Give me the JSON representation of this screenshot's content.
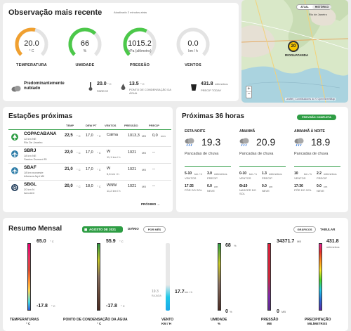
{
  "current": {
    "title": "Observação mais recente",
    "updated": "Atualizado 2 minutos atrás",
    "toggle": {
      "atual": "ATUAL",
      "historico": "HISTÓRICO"
    },
    "gauges": [
      {
        "value": "20.0",
        "unit": "° C",
        "label": "TEMPERATURA",
        "color": "#f0a030",
        "fraction": 0.55
      },
      {
        "value": "66",
        "unit": "%",
        "label": "UMIDADE",
        "color": "#4cc84a",
        "fraction": 0.66
      },
      {
        "value": "1015.2",
        "unit": "hPa (altímetro)",
        "label": "PRESSÃO",
        "color": "#4cc84a",
        "fraction": 0.6
      },
      {
        "value": "0.0",
        "unit": "km / h",
        "label": "VENTOS",
        "color": "#cccccc",
        "fraction": 0.0
      }
    ],
    "condition": "Predominantemente nublado",
    "feels_value": "20.0",
    "feels_unit": "° C",
    "feels_label": "PARECE",
    "dew_value": "13.5",
    "dew_unit": "° C",
    "dew_label": "PONTO DE CONDENSAÇÃO DA ÁGUA",
    "precip_value": "431.8",
    "precip_unit": "milímetros",
    "precip_label": "PRECIP TODAY"
  },
  "map": {
    "city_label": "Rio de Janeiro",
    "station_value": "20",
    "station_label": "RIOGUATANDA",
    "zoom_in": "+",
    "zoom_out": "−",
    "attribution": "Leaflet | Contribuidores do © OpenStreetMap"
  },
  "stations": {
    "title": "Estações próximas",
    "headers": [
      "TEMP",
      "DEW PT",
      "VENTOS",
      "PRESSÃO",
      "PRECIP"
    ],
    "rows": [
      {
        "name": "COPACABANA",
        "dist": "12 km NE",
        "place": "Rio De Janeiro",
        "temp": "22,5",
        "tempu": "° C",
        "dew": "17,0",
        "dewu": "° C",
        "wind": "Calma",
        "windsub": "",
        "press": "1013,3",
        "pressu": "MB",
        "precip": "0,0",
        "precipu": "mm",
        "icon": "tree"
      },
      {
        "name": "SBRJ",
        "dist": "18 km NE",
        "place": "Santos Dumont Rl",
        "temp": "22,0",
        "tempu": "° C",
        "dew": "17,0",
        "dewu": "° C",
        "wind": "W",
        "windsub": "11,1 km / h",
        "press": "1021",
        "pressu": "MB",
        "precip": "--",
        "precipu": "",
        "icon": "plane"
      },
      {
        "name": "SBAF",
        "dist": "18 km noroeste",
        "place": "Afonsos Arpt Mil",
        "temp": "21,0",
        "tempu": "° C",
        "dew": "17,0",
        "dewu": "° C",
        "wind": "W",
        "windsub": "5,6 km / h",
        "press": "1021",
        "pressu": "MB",
        "precip": "--",
        "precipu": "",
        "icon": "plane"
      },
      {
        "name": "SBGL",
        "dist": "20 km N",
        "place": "Isecoteri",
        "temp": "20,0",
        "tempu": "° C",
        "dew": "18,0",
        "dewu": "° C",
        "wind": "WNW",
        "windsub": "11,2 km / h",
        "press": "1021",
        "pressu": "MB",
        "precip": "--",
        "precipu": "",
        "icon": "gear"
      }
    ],
    "next": "PRÓXIMO"
  },
  "forecast": {
    "title": "Próximas 36 horas",
    "button": "PREVISÃO COMPLETA",
    "periods": [
      {
        "label": "ESTA NOITE",
        "temp": "19.3",
        "desc": "Pancadas de chuva",
        "wind_v": "5-10",
        "wind_u": "km / h",
        "wind_l": "VENTOS",
        "precip_v": "3.0",
        "precip_u": "milímetros",
        "precip_l": "PRECIP",
        "t_v": "17:35",
        "t_l": "PÔR DO SOL",
        "s_v": "0.0",
        "s_u": "cm",
        "s_l": "NEVE"
      },
      {
        "label": "AMANHÃ",
        "temp": "20.9",
        "desc": "Pancadas de chuva",
        "wind_v": "0-10",
        "wind_u": "km / h",
        "wind_l": "VENTOS",
        "precip_v": "1.3",
        "precip_u": "milímetros",
        "precip_l": "PRECIP",
        "t_v": "6h19",
        "t_l": "NASCER DO SOL",
        "s_v": "0.0",
        "s_u": "cm",
        "s_l": "NEVE"
      },
      {
        "label": "AMANHÃ À NOITE",
        "temp": "18.9",
        "desc": "Pancadas de chuva",
        "wind_v": "10",
        "wind_u": "km / h",
        "wind_l": "VENTOS",
        "precip_v": "2.2",
        "precip_u": "milímetros",
        "precip_l": "PRECIP",
        "t_v": "17:36",
        "t_l": "PÔR DO SOL",
        "s_v": "0.0",
        "s_u": "cm",
        "s_l": "NEVE"
      }
    ]
  },
  "summary": {
    "title": "Resumo Mensal",
    "date": "agosto de 2021",
    "tabs": [
      "DIÁRIO",
      "POR MÊS"
    ],
    "views": [
      "GRÁFICOS",
      "TABULAR"
    ],
    "temp": {
      "high": "65.0",
      "low": "-17.8",
      "unit": "° C",
      "label": "TEMPERATURAS",
      "label_unit": "° C"
    },
    "dew": {
      "high": "55.9",
      "low": "-17.8",
      "unit": "° C",
      "label": "PONTO DE CONDENSAÇÃO DA ÁGUA",
      "label_unit": "° C"
    },
    "wind": {
      "left": "19.3",
      "left_sub": "RAJADA",
      "value": "17.7",
      "unit": "km / h",
      "label": "VENTO",
      "label_unit": "KM / H"
    },
    "hum": {
      "high": "68",
      "low": "0",
      "unit": "%",
      "label": "UMIDADE",
      "label_unit": "%"
    },
    "press": {
      "high": "34371.7",
      "low": "0",
      "unit": "MB",
      "label": "PRESSÃO",
      "label_unit": "MB"
    },
    "precip": {
      "high": "431.8",
      "unit": "milímetros",
      "label": "PRECIPITAÇÃO",
      "label_unit": "MILÍMETROS"
    }
  }
}
